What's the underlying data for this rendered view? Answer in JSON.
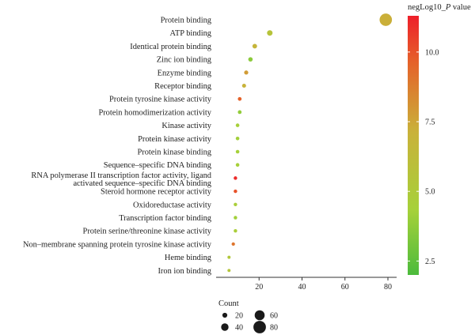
{
  "chart_data": {
    "type": "scatter",
    "xlim": [
      0,
      80
    ],
    "x_ticks": [
      20,
      40,
      60,
      80
    ],
    "categories": [
      "Protein binding",
      "ATP binding",
      "Identical protein binding",
      "Zinc ion binding",
      "Enzyme binding",
      "Receptor binding",
      "Protein tyrosine kinase activity",
      "Protein homodimerization activity",
      "Kinase activity",
      "Protein kinase activity",
      "Protein kinase binding",
      "Sequence–specific DNA binding",
      "RNA polymerase II transcription factor activity, ligand activated sequence–specific DNA binding",
      "Steroid hormone receptor activity",
      "Oxidoreductase activity",
      "Transcription factor binding",
      "Protein serine/threonine kinase activity",
      "Non–membrane spanning protein tyrosine kinase activity",
      "Heme binding",
      "Iron ion binding"
    ],
    "category_label_lines": [
      [
        "Protein binding"
      ],
      [
        "ATP binding"
      ],
      [
        "Identical protein binding"
      ],
      [
        "Zinc ion binding"
      ],
      [
        "Enzyme binding"
      ],
      [
        "Receptor binding"
      ],
      [
        "Protein tyrosine kinase activity"
      ],
      [
        "Protein homodimerization activity"
      ],
      [
        "Kinase activity"
      ],
      [
        "Protein kinase activity"
      ],
      [
        "Protein kinase binding"
      ],
      [
        "Sequence–specific DNA binding"
      ],
      [
        "RNA polymerase II transcription factor activity, ligand",
        "activated sequence–specific DNA binding"
      ],
      [
        "Steroid hormone receptor activity"
      ],
      [
        "Oxidoreductase activity"
      ],
      [
        "Transcription factor binding"
      ],
      [
        "Protein serine/threonine kinase activity"
      ],
      [
        "Non–membrane spanning protein tyrosine kinase activity"
      ],
      [
        "Heme binding"
      ],
      [
        "Iron ion binding"
      ]
    ],
    "count": [
      79,
      25,
      18,
      16,
      14,
      13,
      11,
      11,
      10,
      10,
      10,
      10,
      9,
      9,
      9,
      9,
      9,
      8,
      6,
      6
    ],
    "negLog10_P": [
      7.2,
      5.6,
      6.8,
      3.6,
      7.8,
      7.0,
      9.6,
      3.8,
      4.4,
      4.2,
      4.3,
      4.4,
      11.0,
      10.0,
      4.6,
      4.2,
      4.6,
      9.0,
      5.2,
      5.4
    ],
    "color_legend": {
      "title": "negLog10_",
      "title_italic": "P",
      "title_suffix": " value",
      "range": [
        2.0,
        11.3
      ],
      "ticks": [
        2.5,
        5.0,
        7.5,
        10.0
      ],
      "tick_labels": [
        "2.5",
        "5.0",
        "7.5",
        "10.0"
      ],
      "colors": [
        "#4cbb3c",
        "#a6d13a",
        "#c9b23a",
        "#e5622a",
        "#ee1f2a"
      ]
    },
    "size_legend": {
      "title": "Count",
      "values": [
        20,
        40,
        60,
        80
      ],
      "labels": [
        "20",
        "40",
        "60",
        "80"
      ]
    },
    "grid": false
  }
}
